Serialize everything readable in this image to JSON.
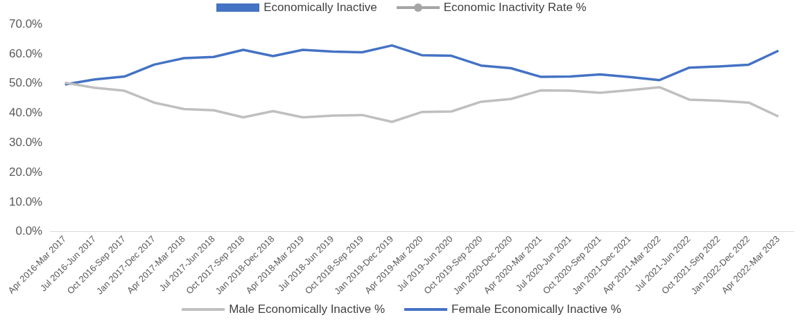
{
  "chart_data": {
    "type": "line",
    "categories": [
      "Apr 2016-Mar 2017",
      "Jul 2016-Jun 2017",
      "Oct 2016-Sep 2017",
      "Jan 2017-Dec 2017",
      "Apr 2017-Mar 2018",
      "Jul 2017-Jun 2018",
      "Oct 2017-Sep 2018",
      "Jan 2018-Dec 2018",
      "Apr 2018-Mar 2019",
      "Jul 2018-Jun 2019",
      "Oct 2018-Sep 2019",
      "Jan 2019-Dec 2019",
      "Apr 2019-Mar 2020",
      "Jul 2019-Jun 2020",
      "Oct 2019-Sep 2020",
      "Jan 2020-Dec 2020",
      "Apr 2020-Mar 2021",
      "Jul 2020-Jun 2021",
      "Oct 2020-Sep 2021",
      "Jan 2021-Dec 2021",
      "Apr 2021-Mar 2022",
      "Jul 2021-Jun 2022",
      "Oct 2021-Sep 2022",
      "Jan 2022-Dec 2022",
      "Apr 2022-Mar 2023"
    ],
    "series": [
      {
        "name": "Economically Inactive",
        "type": "bar",
        "color": "#4472c4",
        "values": [
          null,
          null,
          null,
          null,
          null,
          null,
          null,
          null,
          null,
          null,
          null,
          null,
          null,
          null,
          null,
          null,
          null,
          null,
          null,
          null,
          null,
          null,
          null,
          null,
          null
        ]
      },
      {
        "name": "Economic Inactivity Rate %",
        "type": "line",
        "marker": "circle",
        "color": "#a5a5a5",
        "values": [
          null,
          null,
          null,
          null,
          null,
          null,
          null,
          null,
          null,
          null,
          null,
          null,
          null,
          null,
          null,
          null,
          null,
          null,
          null,
          null,
          null,
          null,
          null,
          null,
          null
        ]
      },
      {
        "name": "Male Economically Inactive %",
        "color": "#bfbfbf",
        "values": [
          50.3,
          48.6,
          47.6,
          43.6,
          41.4,
          41.0,
          38.6,
          40.7,
          38.6,
          39.2,
          39.4,
          37.1,
          40.4,
          40.6,
          43.9,
          44.8,
          47.7,
          47.6,
          46.9,
          47.8,
          48.8,
          44.6,
          44.2,
          43.6,
          38.9
        ]
      },
      {
        "name": "Female Economically Inactive %",
        "color": "#4472c4",
        "values": [
          49.7,
          51.4,
          52.4,
          56.4,
          58.6,
          59.0,
          61.4,
          59.3,
          61.4,
          60.8,
          60.6,
          62.9,
          59.6,
          59.4,
          56.1,
          55.2,
          52.3,
          52.4,
          53.1,
          52.2,
          51.2,
          55.4,
          55.8,
          56.4,
          61.1
        ]
      }
    ],
    "ylim": [
      0,
      70
    ],
    "yticks": [
      {
        "value": 0,
        "label": "0.0%"
      },
      {
        "value": 10,
        "label": "10.0%"
      },
      {
        "value": 20,
        "label": "20.0%"
      },
      {
        "value": 30,
        "label": "30.0%"
      },
      {
        "value": 40,
        "label": "40.0%"
      },
      {
        "value": 50,
        "label": "50.0%"
      },
      {
        "value": 60,
        "label": "60.0%"
      },
      {
        "value": 70,
        "label": "70.0%"
      }
    ],
    "grid": false,
    "legend": "bottom",
    "line_style": "solid"
  }
}
